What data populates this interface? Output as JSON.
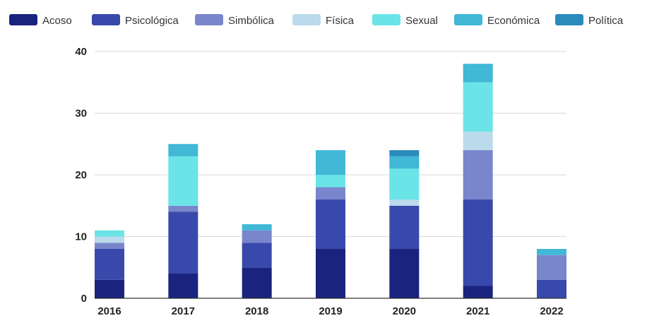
{
  "chart_data": {
    "type": "bar",
    "stacked": true,
    "title": "",
    "xlabel": "",
    "ylabel": "",
    "categories": [
      "2016",
      "2017",
      "2018",
      "2019",
      "2020",
      "2021",
      "2022"
    ],
    "ylim": [
      0,
      40
    ],
    "yticks": [
      0,
      10,
      20,
      30,
      40
    ],
    "grid": true,
    "legend_position": "top",
    "series": [
      {
        "name": "Acoso",
        "color": "#1a237e",
        "values": [
          3,
          4,
          5,
          8,
          8,
          2,
          0
        ]
      },
      {
        "name": "Psicológica",
        "color": "#3949ab",
        "values": [
          5,
          10,
          4,
          8,
          7,
          14,
          3
        ]
      },
      {
        "name": "Simbólica",
        "color": "#7986cb",
        "values": [
          1,
          1,
          2,
          2,
          0,
          8,
          4
        ]
      },
      {
        "name": "Física",
        "color": "#bbdaeb",
        "values": [
          1,
          0,
          0,
          0,
          1,
          3,
          0
        ]
      },
      {
        "name": "Sexual",
        "color": "#6ae4e6",
        "values": [
          1,
          8,
          0,
          2,
          5,
          8,
          0
        ]
      },
      {
        "name": "Económica",
        "color": "#40b8d6",
        "values": [
          0,
          2,
          1,
          4,
          2,
          3,
          1
        ]
      },
      {
        "name": "Política",
        "color": "#2a8bbd",
        "values": [
          0,
          0,
          0,
          0,
          1,
          0,
          0
        ]
      }
    ]
  }
}
